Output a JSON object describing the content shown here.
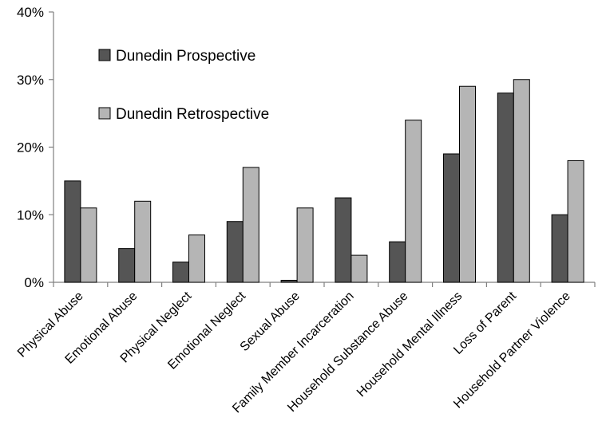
{
  "chart_data": {
    "type": "bar",
    "title": "",
    "xlabel": "",
    "ylabel": "",
    "ylim": [
      0,
      40
    ],
    "yticks": [
      "0%",
      "10%",
      "20%",
      "30%",
      "40%"
    ],
    "grid": false,
    "legend_position": "top-left",
    "categories": [
      "Physical Abuse",
      "Emotional Abuse",
      "Physical Neglect",
      "Emotional Neglect",
      "Sexual Abuse",
      "Family Member Incarceration",
      "Household Substance Abuse",
      "Household Mental Illness",
      "Loss of Parent",
      "Household Partner Violence"
    ],
    "series": [
      {
        "name": "Dunedin Prospective",
        "color": "#555555",
        "values": [
          15,
          5,
          3,
          9,
          0.3,
          12.5,
          6,
          19,
          28,
          10
        ]
      },
      {
        "name": "Dunedin Retrospective",
        "color": "#b5b5b5",
        "values": [
          11,
          12,
          7,
          17,
          11,
          4,
          24,
          29,
          30,
          18
        ]
      }
    ]
  }
}
